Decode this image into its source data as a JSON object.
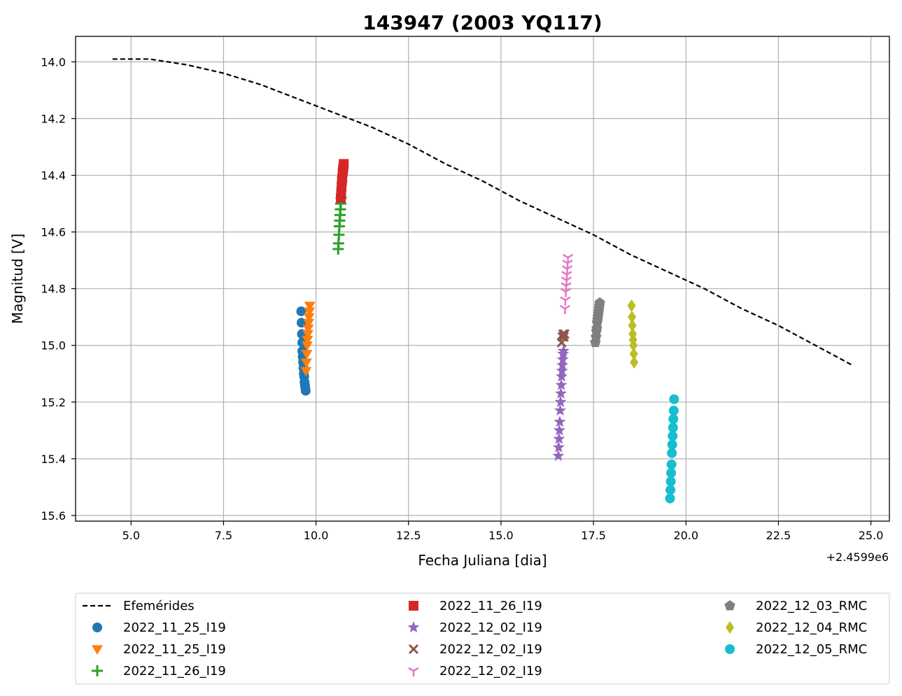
{
  "chart_data": {
    "type": "scatter",
    "title": "143947 (2003 YQ117)",
    "xlabel": "Fecha Juliana [dia]",
    "ylabel": "Magnitud [V]",
    "x_offset_label": "+2.4599e6",
    "xlim": [
      3.5,
      25.5
    ],
    "ylim": [
      15.62,
      13.91
    ],
    "y_inverted": true,
    "xticks": [
      "5.0",
      "7.5",
      "10.0",
      "12.5",
      "15.0",
      "17.5",
      "20.0",
      "22.5",
      "25.0"
    ],
    "xtick_values": [
      5.0,
      7.5,
      10.0,
      12.5,
      15.0,
      17.5,
      20.0,
      22.5,
      25.0
    ],
    "yticks": [
      "14.0",
      "14.2",
      "14.4",
      "14.6",
      "14.8",
      "15.0",
      "15.2",
      "15.4",
      "15.6"
    ],
    "ytick_values": [
      14.0,
      14.2,
      14.4,
      14.6,
      14.8,
      15.0,
      15.2,
      15.4,
      15.6
    ],
    "grid": true,
    "legend_position": "below plot, 3 columns",
    "series": [
      {
        "name": "Efemérides",
        "kind": "line",
        "color": "#000000",
        "dash": true,
        "x": [
          4.5,
          5.5,
          6.5,
          7.5,
          8.5,
          9.5,
          10.5,
          11.5,
          12.5,
          13.5,
          14.5,
          15.5,
          16.5,
          17.5,
          18.5,
          19.5,
          20.5,
          21.5,
          22.5,
          23.5,
          24.5
        ],
        "y": [
          13.99,
          13.99,
          14.01,
          14.04,
          14.08,
          14.13,
          14.18,
          14.23,
          14.29,
          14.36,
          14.42,
          14.49,
          14.55,
          14.61,
          14.68,
          14.74,
          14.8,
          14.87,
          14.93,
          15.0,
          15.07
        ]
      },
      {
        "name": "2022_11_25_I19",
        "kind": "points",
        "marker": "circle",
        "color": "#1f77b4",
        "x": [
          9.6,
          9.61,
          9.62,
          9.63,
          9.63,
          9.64,
          9.65,
          9.66,
          9.67,
          9.68,
          9.69,
          9.7,
          9.71,
          9.72
        ],
        "y": [
          14.88,
          14.92,
          14.96,
          14.99,
          15.02,
          15.04,
          15.06,
          15.08,
          15.1,
          15.11,
          15.13,
          15.14,
          15.15,
          15.16
        ]
      },
      {
        "name": "2022_11_25_I19",
        "kind": "points",
        "marker": "triangle-down",
        "color": "#ff7f0e",
        "x": [
          9.73,
          9.74,
          9.75,
          9.76,
          9.77,
          9.78,
          9.79,
          9.8,
          9.81,
          9.82,
          9.83
        ],
        "y": [
          15.09,
          15.06,
          15.03,
          15.0,
          14.98,
          14.96,
          14.94,
          14.92,
          14.9,
          14.88,
          14.86
        ]
      },
      {
        "name": "2022_11_26_I19",
        "kind": "points",
        "marker": "plus",
        "color": "#2ca02c",
        "x": [
          10.6,
          10.61,
          10.62,
          10.63,
          10.64,
          10.65,
          10.66,
          10.67,
          10.68
        ],
        "y": [
          14.66,
          14.64,
          14.61,
          14.58,
          14.56,
          14.54,
          14.52,
          14.5,
          14.48
        ]
      },
      {
        "name": "2022_11_26_I19",
        "kind": "points",
        "marker": "square",
        "color": "#d62728",
        "x": [
          10.67,
          10.68,
          10.69,
          10.7,
          10.71,
          10.72,
          10.73,
          10.74,
          10.75
        ],
        "y": [
          14.48,
          14.46,
          14.44,
          14.42,
          14.41,
          14.39,
          14.38,
          14.37,
          14.36
        ]
      },
      {
        "name": "2022_12_02_I19",
        "kind": "points",
        "marker": "star",
        "color": "#9467bd",
        "x": [
          16.55,
          16.56,
          16.57,
          16.58,
          16.59,
          16.6,
          16.61,
          16.62,
          16.63,
          16.64,
          16.65,
          16.66,
          16.67,
          16.68,
          16.69
        ],
        "y": [
          15.39,
          15.36,
          15.33,
          15.3,
          15.27,
          15.23,
          15.2,
          15.17,
          15.14,
          15.11,
          15.09,
          15.07,
          15.05,
          15.03,
          15.02
        ]
      },
      {
        "name": "2022_12_02_I19",
        "kind": "points",
        "marker": "x",
        "color": "#8c564b",
        "x": [
          16.64,
          16.66,
          16.68,
          16.7,
          16.72
        ],
        "y": [
          14.99,
          14.97,
          14.96,
          14.97,
          14.96
        ]
      },
      {
        "name": "2022_12_02_I19",
        "kind": "points",
        "marker": "tri-down",
        "color": "#e377c2",
        "x": [
          16.73,
          16.74,
          16.75,
          16.76,
          16.77,
          16.78,
          16.79,
          16.8,
          16.81
        ],
        "y": [
          14.87,
          14.84,
          14.81,
          14.79,
          14.77,
          14.75,
          14.73,
          14.71,
          14.69
        ]
      },
      {
        "name": "2022_12_03_RMC",
        "kind": "points",
        "marker": "pentagon",
        "color": "#7f7f7f",
        "x": [
          17.55,
          17.57,
          17.58,
          17.59,
          17.6,
          17.61,
          17.62,
          17.63,
          17.64,
          17.65,
          17.66,
          17.67
        ],
        "y": [
          14.99,
          14.97,
          14.95,
          14.94,
          14.92,
          14.91,
          14.9,
          14.89,
          14.88,
          14.87,
          14.86,
          14.85
        ]
      },
      {
        "name": "2022_12_04_RMC",
        "kind": "points",
        "marker": "diamond",
        "color": "#bcbd22",
        "x": [
          18.53,
          18.54,
          18.55,
          18.56,
          18.57,
          18.58,
          18.59,
          18.6
        ],
        "y": [
          14.86,
          14.9,
          14.93,
          14.96,
          14.98,
          15.0,
          15.03,
          15.06
        ]
      },
      {
        "name": "2022_12_05_RMC",
        "kind": "points",
        "marker": "circle",
        "color": "#17becf",
        "x": [
          19.57,
          19.58,
          19.59,
          19.6,
          19.61,
          19.62,
          19.63,
          19.64,
          19.65,
          19.66,
          19.67,
          19.68
        ],
        "y": [
          15.54,
          15.51,
          15.48,
          15.45,
          15.42,
          15.38,
          15.35,
          15.32,
          15.29,
          15.26,
          15.23,
          15.19
        ]
      }
    ]
  }
}
